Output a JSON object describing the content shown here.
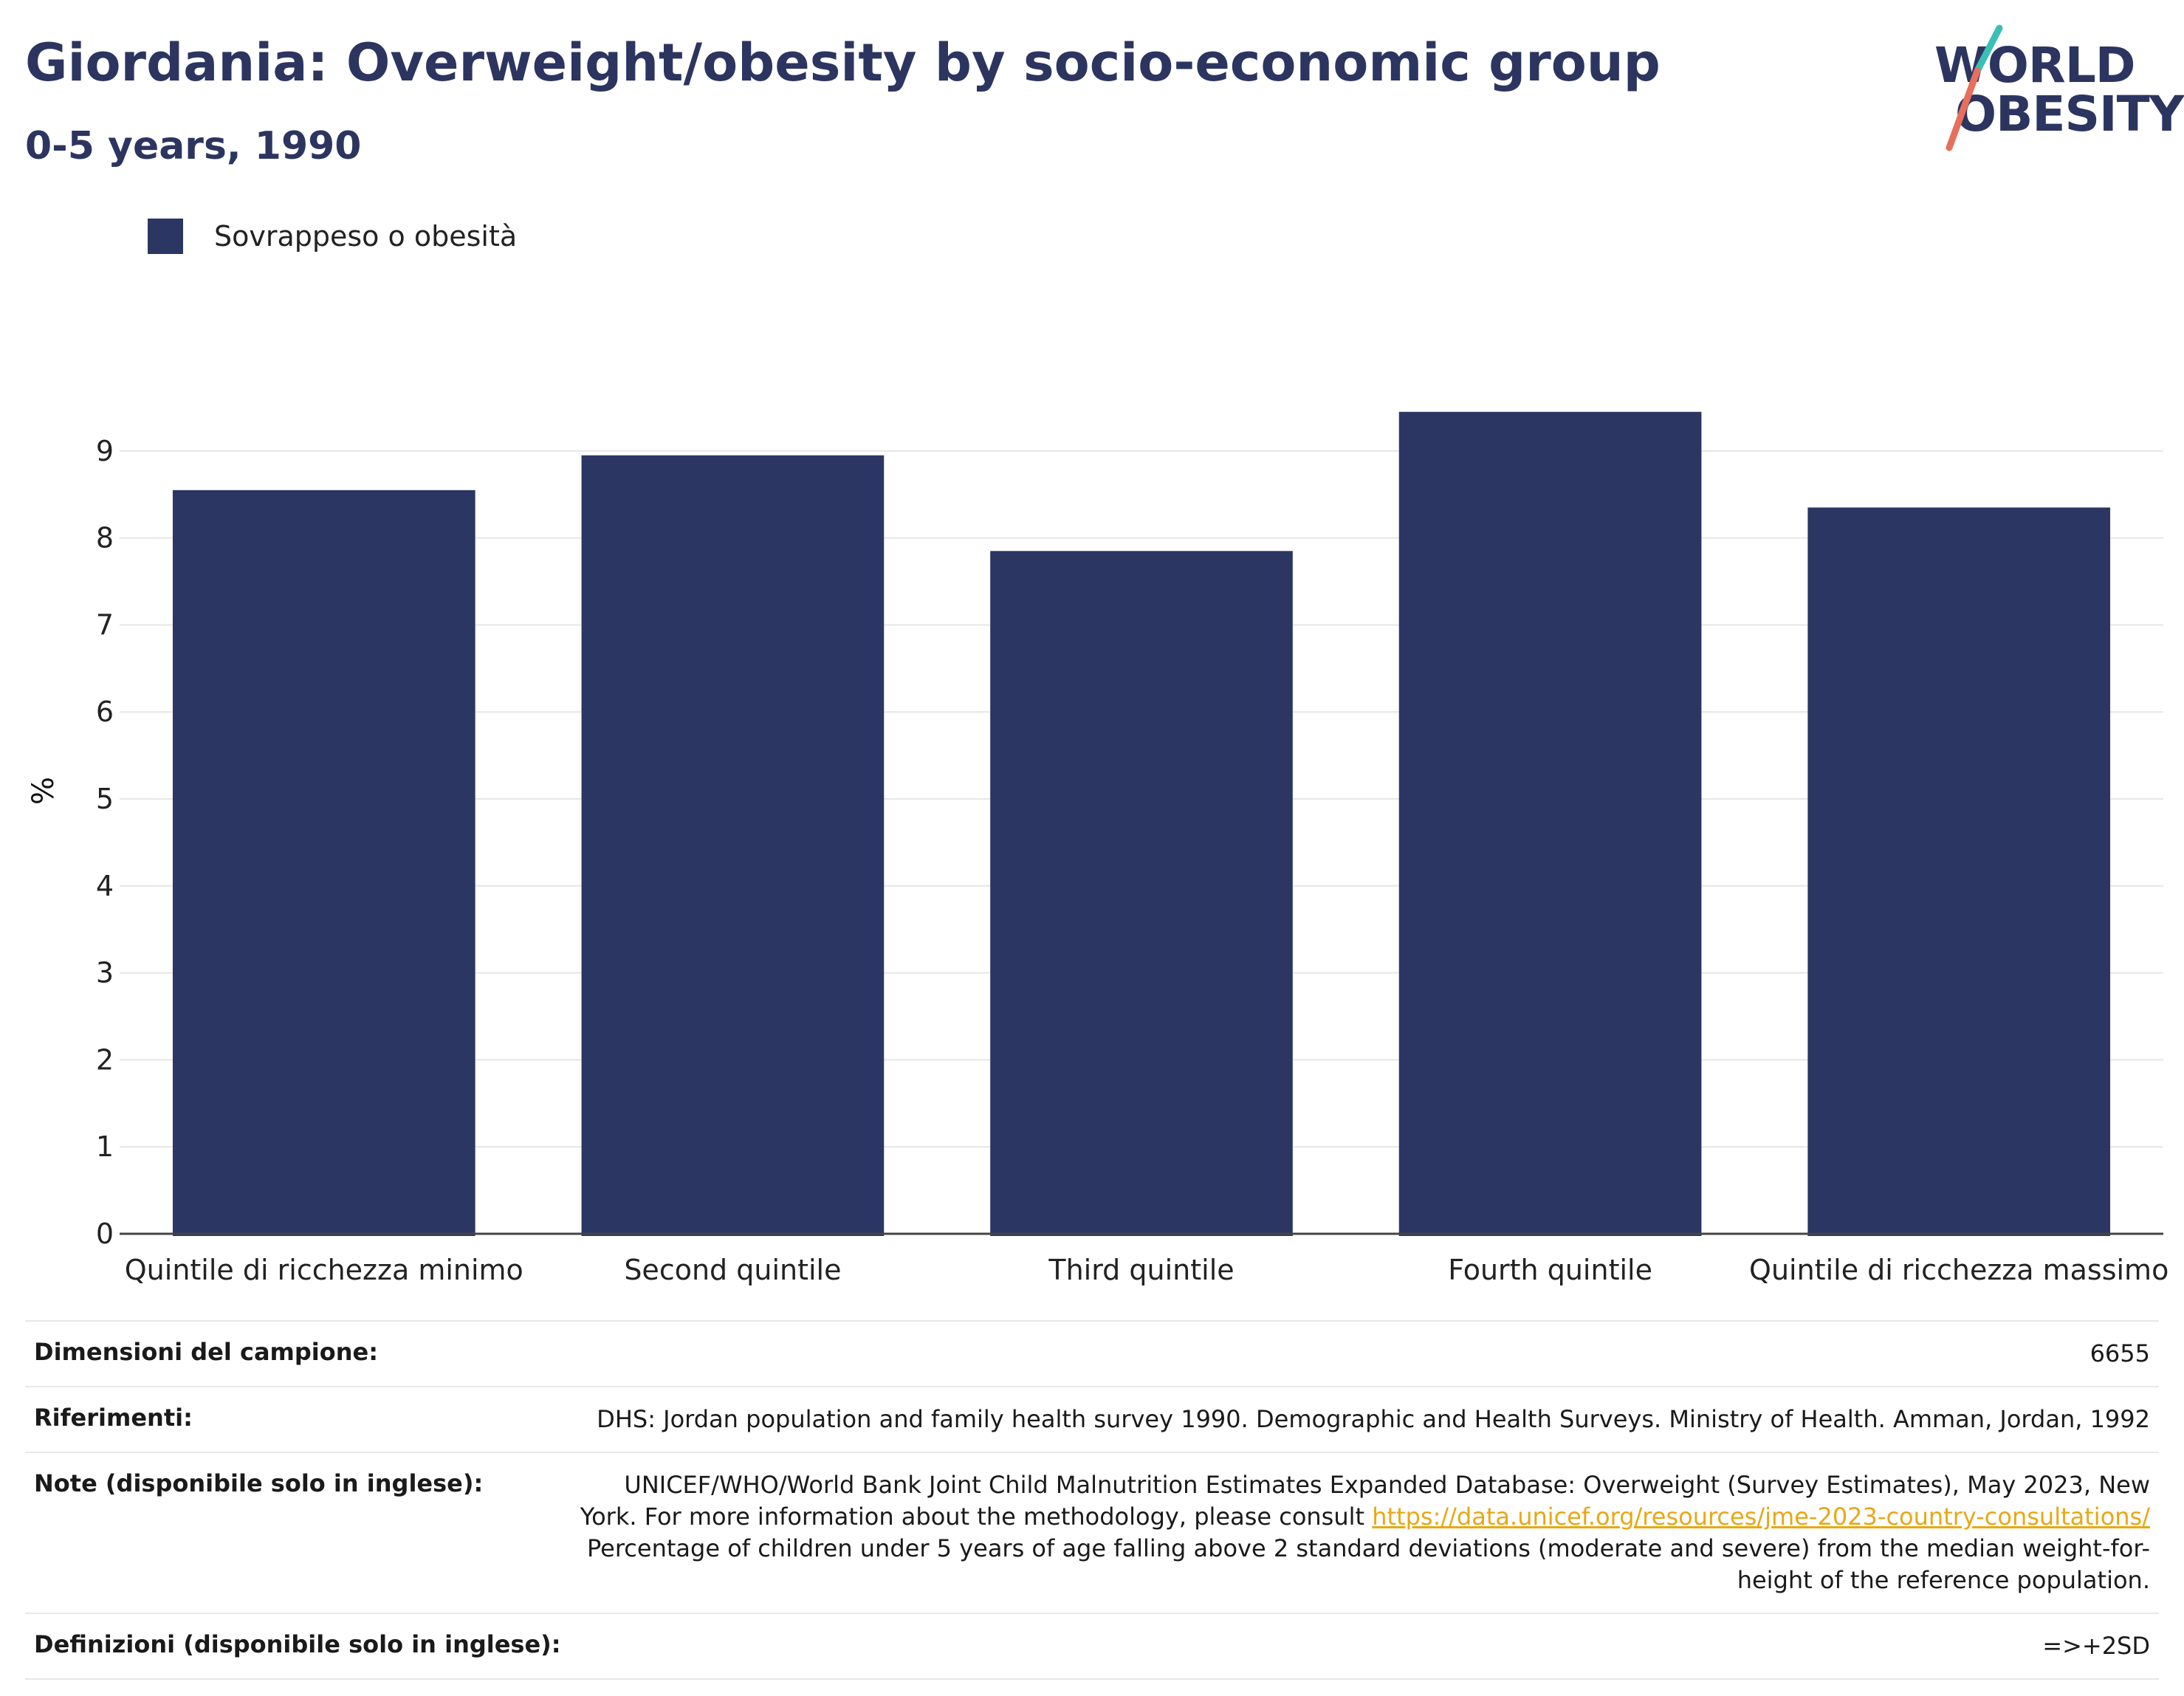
{
  "title": "Giordania: Overweight/obesity by socio-economic group",
  "subtitle": "0-5 years, 1990",
  "logo": {
    "line1": "WORLD",
    "line2": "OBESITY"
  },
  "colors": {
    "bar": "#2b3663",
    "title": "#2c3560",
    "link": "#e8a814",
    "logo_teal": "#3bbfb4",
    "logo_coral": "#e76f5b"
  },
  "chart_data": {
    "type": "bar",
    "categories": [
      "Quintile di ricchezza minimo",
      "Second quintile",
      "Third quintile",
      "Fourth quintile",
      "Quintile di ricchezza massimo"
    ],
    "series": [
      {
        "name": "Sovrappeso o obesità",
        "values": [
          8.55,
          8.95,
          7.85,
          9.45,
          8.35
        ]
      }
    ],
    "ylabel": "%",
    "ylim": [
      0,
      9.5
    ],
    "yticks": [
      0,
      1,
      2,
      3,
      4,
      5,
      6,
      7,
      8,
      9
    ],
    "grid": true,
    "legend": "top-left"
  },
  "info": {
    "sample_label": "Dimensioni del campione:",
    "sample_value": "6655",
    "refs_label": "Riferimenti:",
    "refs_value": "DHS: Jordan population and family health survey 1990. Demographic and Health Surveys. Ministry of Health. Amman, Jordan, 1992",
    "notes_label": "Note (disponibile solo in inglese):",
    "notes_line1": "UNICEF/WHO/World Bank Joint Child Malnutrition Estimates Expanded Database: Overweight (Survey Estimates), May 2023, New",
    "notes_line2": "York. For more information about the methodology, please consult ",
    "notes_link": "https://data.unicef.org/resources/jme-2023-country-consultations/",
    "notes_line3": "Percentage of children under 5 years of age falling above 2 standard deviations (moderate and severe) from the median weight-for-",
    "notes_line4": "height of the reference population.",
    "defs_label": "Definizioni (disponibile solo in inglese):",
    "defs_value": "=>+2SD"
  }
}
